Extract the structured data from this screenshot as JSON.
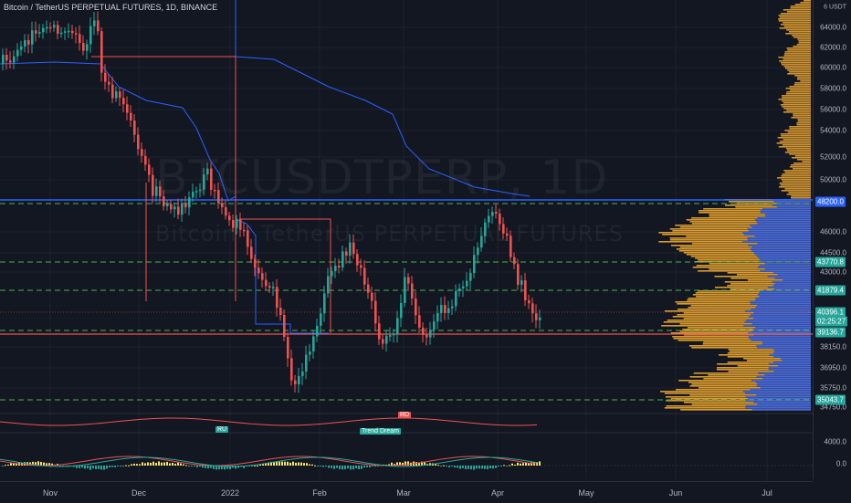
{
  "header": {
    "title": "Bitcoin / TetherUS PERPETUAL FUTURES, 1D, BINANCE"
  },
  "watermark": {
    "symbol": "BTCUSDTPERP, 1D",
    "description": "Bitcoin / TetherUS PERPETUAL FUTURES"
  },
  "price_scale": {
    "currency": "USDT",
    "labels": [
      "64000.0",
      "62000.0",
      "60000.0",
      "58000.0",
      "56000.0",
      "54000.0",
      "52000.0",
      "50000.0",
      "46000.0",
      "44500.0",
      "43000.0",
      "38150.0",
      "36950.0",
      "35750.0",
      "34750.0"
    ],
    "badges": [
      {
        "text": "48200.0",
        "color": "#2962ff"
      },
      {
        "text": "43770.8",
        "color": "#26a69a"
      },
      {
        "text": "41879.4",
        "color": "#26a69a"
      },
      {
        "text": "40396.1",
        "color": "#26a69a"
      },
      {
        "text": "02:25:27",
        "color": "#26a69a"
      },
      {
        "text": "39136.7",
        "color": "#26a69a"
      },
      {
        "text": "35043.7",
        "color": "#26a69a"
      }
    ]
  },
  "time_scale": {
    "labels": [
      "Nov",
      "Dec",
      "2022",
      "Feb",
      "Mar",
      "Apr",
      "May",
      "Jun",
      "Jul"
    ]
  },
  "signals": [
    {
      "text": "RU",
      "color": "#26a69a"
    },
    {
      "text": "Trend Dream",
      "color": "#26a69a"
    },
    {
      "text": "RD",
      "color": "#ef5350"
    }
  ],
  "oscillator": {
    "labels": [
      "4000.0",
      "0.0"
    ]
  },
  "colors": {
    "background": "#131722",
    "up": "#26a69a",
    "down": "#ef5350",
    "support": "#2962ff",
    "volume_profile": "#f0a830",
    "grid": "#1e222d"
  }
}
